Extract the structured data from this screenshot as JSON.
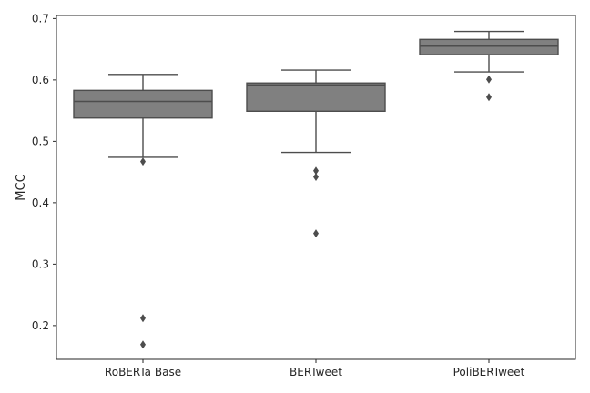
{
  "chart_data": {
    "type": "box",
    "title": "",
    "xlabel": "",
    "ylabel": "MCC",
    "ylim": [
      0.145,
      0.705
    ],
    "yticks": [
      0.2,
      0.3,
      0.4,
      0.5,
      0.6,
      0.7
    ],
    "ytick_labels": [
      "0.2",
      "0.3",
      "0.4",
      "0.5",
      "0.6",
      "0.7"
    ],
    "grid": false,
    "box_color": "#808080",
    "edge_color": "#4d4d4d",
    "categories": [
      "RoBERTa Base",
      "BERTweet",
      "PoliBERTweet"
    ],
    "boxes": [
      {
        "label": "RoBERTa Base",
        "whisker_low": 0.474,
        "q1": 0.538,
        "median": 0.565,
        "q3": 0.583,
        "whisker_high": 0.609,
        "outliers": [
          0.467,
          0.212,
          0.169
        ]
      },
      {
        "label": "BERTweet",
        "whisker_low": 0.482,
        "q1": 0.549,
        "median": 0.592,
        "q3": 0.595,
        "whisker_high": 0.616,
        "outliers": [
          0.452,
          0.442,
          0.35
        ]
      },
      {
        "label": "PoliBERTweet",
        "whisker_low": 0.613,
        "q1": 0.641,
        "median": 0.655,
        "q3": 0.666,
        "whisker_high": 0.679,
        "outliers": [
          0.601,
          0.572
        ]
      }
    ]
  }
}
